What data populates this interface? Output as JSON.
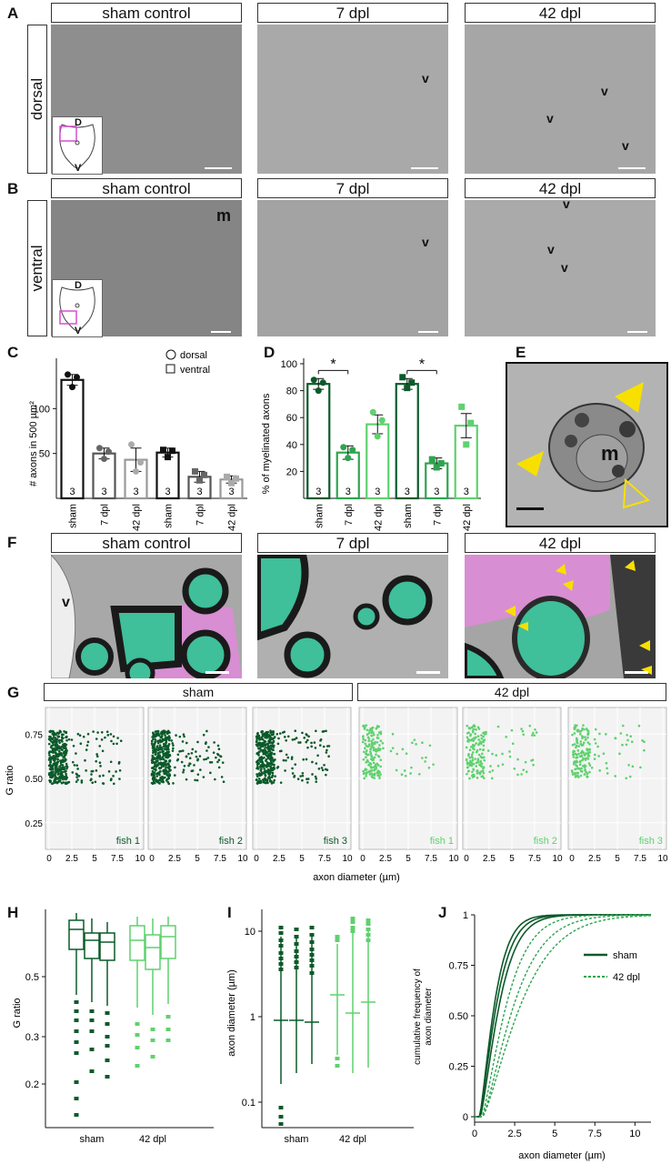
{
  "panels": {
    "A": "A",
    "B": "B",
    "C": "C",
    "D": "D",
    "E": "E",
    "F": "F",
    "G": "G",
    "H": "H",
    "I": "I",
    "J": "J"
  },
  "headers": {
    "sham": "sham control",
    "dpl7": "7 dpl",
    "dpl42": "42 dpl"
  },
  "row_labels": {
    "dorsal": "dorsal",
    "ventral": "ventral"
  },
  "inset_labels": {
    "d": "D",
    "v": "V"
  },
  "em_marks": {
    "v": "v",
    "m": "m"
  },
  "colors": {
    "dark_green": "#0b5a2a",
    "mid_green": "#2ea44f",
    "light_green": "#5fd16f",
    "myelin_fill": "#3fbf9a",
    "pink": "#e08ad9",
    "yellow": "#f7e000"
  },
  "chart_C": {
    "type": "bar",
    "ylabel": "# axons in 500 µm²",
    "yticks": [
      "50",
      "100"
    ],
    "ylim": [
      0,
      150
    ],
    "legend": [
      "dorsal",
      "ventral"
    ],
    "categories": [
      "sham",
      "7 dpl",
      "42 dpl",
      "sham",
      "7 dpl",
      "42 dpl"
    ],
    "values": [
      132,
      50,
      43,
      51,
      24,
      21
    ],
    "n": [
      "3",
      "3",
      "3",
      "3",
      "3",
      "3"
    ]
  },
  "chart_D": {
    "type": "bar",
    "ylabel": "% of myelinated axons",
    "yticks": [
      "20",
      "40",
      "60",
      "80",
      "100"
    ],
    "ylim": [
      0,
      100
    ],
    "categories": [
      "sham",
      "7 dpl",
      "42 dpl",
      "sham",
      "7 dpl",
      "42 dpl"
    ],
    "values": [
      85,
      34,
      55,
      85,
      26,
      54
    ],
    "n": [
      "3",
      "3",
      "3",
      "3",
      "3",
      "3"
    ],
    "sig": "*"
  },
  "chart_G": {
    "type": "scatter",
    "groups": [
      "sham",
      "42 dpl"
    ],
    "fish": [
      "fish 1",
      "fish 2",
      "fish 3",
      "fish 1",
      "fish 2",
      "fish 3"
    ],
    "ylabel": "G ratio",
    "xlabel": "axon diameter (µm)",
    "yticks": [
      "0.25",
      "0.50",
      "0.75"
    ],
    "xticks": [
      "0",
      "2.5",
      "5",
      "7.5",
      "10"
    ]
  },
  "chart_H": {
    "type": "box",
    "ylabel": "G ratio",
    "yticks": [
      "0.2",
      "0.3",
      "0.5"
    ],
    "groups": [
      "sham",
      "42 dpl"
    ]
  },
  "chart_I": {
    "type": "box",
    "ylabel": "axon diameter (µm)",
    "yticks": [
      "0.1",
      "1",
      "10"
    ],
    "groups": [
      "sham",
      "42 dpl"
    ]
  },
  "chart_J": {
    "type": "line",
    "ylabel": "cumulative frequency of axon diameter",
    "ylabel_line1": "cumulative frequency of",
    "ylabel_line2": "axon diameter",
    "xlabel": "axon diameter (µm)",
    "yticks": [
      "0",
      "0.25",
      "0.50",
      "0.75",
      "1"
    ],
    "xticks": [
      "0",
      "2.5",
      "5",
      "7.5",
      "10"
    ],
    "legend": [
      "sham",
      "42 dpl"
    ]
  }
}
